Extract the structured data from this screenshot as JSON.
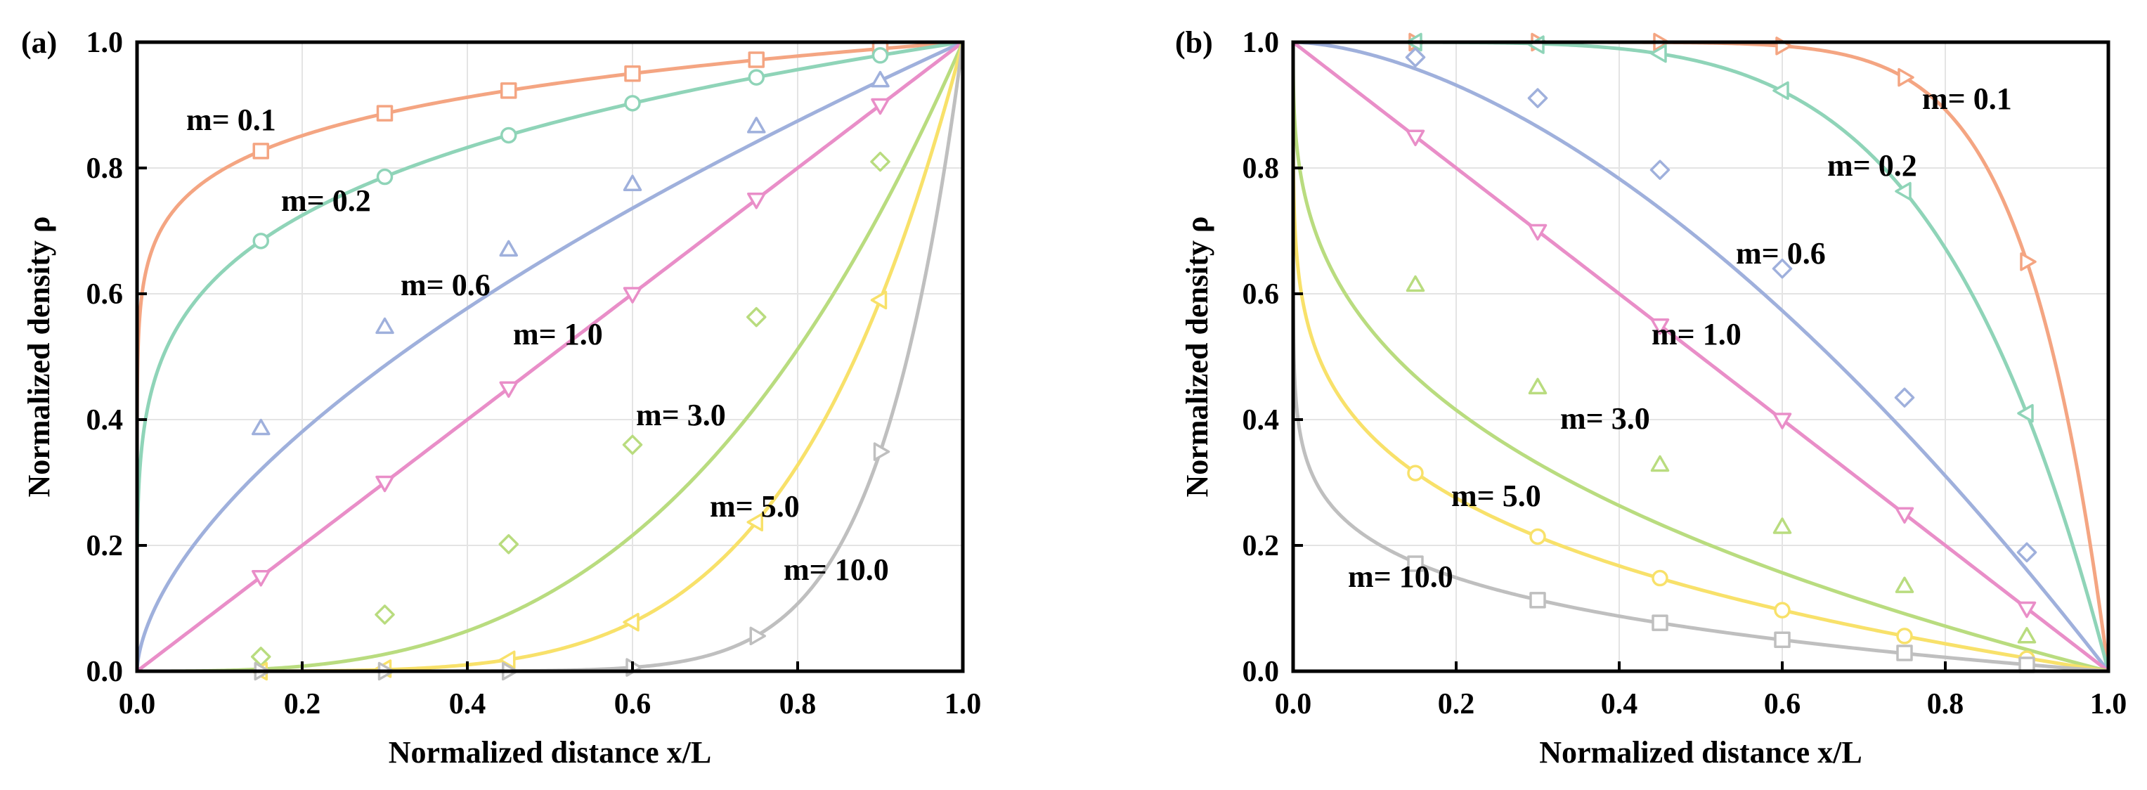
{
  "figure": {
    "panels": [
      "(a)",
      "(b)"
    ]
  },
  "chart_data": [
    {
      "type": "line",
      "panel_label": "(a)",
      "xlabel": "Normalized distance x/L",
      "ylabel": "Normalized density ρ",
      "xlim": [
        0,
        1
      ],
      "ylim": [
        0,
        1
      ],
      "xticks": [
        "0.0",
        "0.2",
        "0.4",
        "0.6",
        "0.8",
        "1.0"
      ],
      "yticks": [
        "0.0",
        "0.2",
        "0.4",
        "0.6",
        "0.8",
        "1.0"
      ],
      "grid": true,
      "x": [
        0,
        0.15,
        0.3,
        0.45,
        0.6,
        0.75,
        0.9,
        1.0
      ],
      "series": [
        {
          "name": "m= 0.1",
          "m": 0.1,
          "color": "#f4a582",
          "marker": "square",
          "values": [
            0,
            0.827,
            0.887,
            0.923,
            0.95,
            0.972,
            0.99,
            1.0
          ]
        },
        {
          "name": "m= 0.2",
          "m": 0.2,
          "color": "#8fd4b8",
          "marker": "circle",
          "values": [
            0,
            0.684,
            0.786,
            0.852,
            0.903,
            0.944,
            0.979,
            1.0
          ]
        },
        {
          "name": "m= 0.6",
          "m": 0.6,
          "color": "#9fb0dc",
          "marker": "triangle-up",
          "values": [
            0,
            0.386,
            0.547,
            0.67,
            0.774,
            0.866,
            0.939,
            1.0
          ]
        },
        {
          "name": "m= 1.0",
          "m": 1.0,
          "color": "#e98ec8",
          "marker": "triangle-down",
          "values": [
            0,
            0.15,
            0.3,
            0.45,
            0.6,
            0.75,
            0.9,
            1.0
          ]
        },
        {
          "name": "m= 3.0",
          "m": 3.0,
          "color": "#b9dc7f",
          "marker": "diamond",
          "values": [
            0,
            0.023,
            0.09,
            0.202,
            0.36,
            0.563,
            0.81,
            1.0
          ]
        },
        {
          "name": "m= 5.0",
          "m": 5.0,
          "color": "#f8e16a",
          "marker": "triangle-left",
          "values": [
            0,
            0.0,
            0.004,
            0.018,
            0.078,
            0.237,
            0.59,
            1.0
          ]
        },
        {
          "name": "m= 10.0",
          "m": 10.0,
          "color": "#bfbfbf",
          "marker": "triangle-right",
          "values": [
            0,
            0.0,
            0.0,
            0.0,
            0.006,
            0.056,
            0.349,
            1.0
          ]
        }
      ]
    },
    {
      "type": "line",
      "panel_label": "(b)",
      "xlabel": "Normalized distance x/L",
      "ylabel": "Normalized density ρ",
      "xlim": [
        0,
        1
      ],
      "ylim": [
        0,
        1
      ],
      "xticks": [
        "0.0",
        "0.2",
        "0.4",
        "0.6",
        "0.8",
        "1.0"
      ],
      "yticks": [
        "0.0",
        "0.2",
        "0.4",
        "0.6",
        "0.8",
        "1.0"
      ],
      "grid": true,
      "x": [
        0,
        0.15,
        0.3,
        0.45,
        0.6,
        0.75,
        0.9,
        1.0
      ],
      "series": [
        {
          "name": "m= 0.1",
          "m": 0.1,
          "color": "#f4a582",
          "marker": "triangle-right",
          "values": [
            1.0,
            1.0,
            1.0,
            1.0,
            0.994,
            0.944,
            0.651,
            0
          ]
        },
        {
          "name": "m= 0.2",
          "m": 0.2,
          "color": "#8fd4b8",
          "marker": "triangle-left",
          "values": [
            1.0,
            1.0,
            0.996,
            0.982,
            0.923,
            0.763,
            0.41,
            0
          ]
        },
        {
          "name": "m= 0.6",
          "m": 0.6,
          "color": "#9fb0dc",
          "marker": "diamond",
          "values": [
            1.0,
            0.976,
            0.911,
            0.797,
            0.64,
            0.435,
            0.189,
            0
          ]
        },
        {
          "name": "m= 1.0",
          "m": 1.0,
          "color": "#e98ec8",
          "marker": "triangle-down",
          "values": [
            1.0,
            0.85,
            0.7,
            0.55,
            0.4,
            0.25,
            0.1,
            0
          ]
        },
        {
          "name": "m= 3.0",
          "m": 3.0,
          "color": "#b9dc7f",
          "marker": "triangle-up",
          "values": [
            1.0,
            0.614,
            0.451,
            0.328,
            0.229,
            0.135,
            0.055,
            0
          ]
        },
        {
          "name": "m= 5.0",
          "m": 5.0,
          "color": "#f8e16a",
          "marker": "circle",
          "values": [
            1.0,
            0.315,
            0.214,
            0.148,
            0.097,
            0.056,
            0.02,
            0
          ]
        },
        {
          "name": "m= 10.0",
          "m": 10.0,
          "color": "#bfbfbf",
          "marker": "square",
          "values": [
            1.0,
            0.171,
            0.113,
            0.077,
            0.05,
            0.029,
            0.01,
            0
          ]
        }
      ]
    }
  ]
}
